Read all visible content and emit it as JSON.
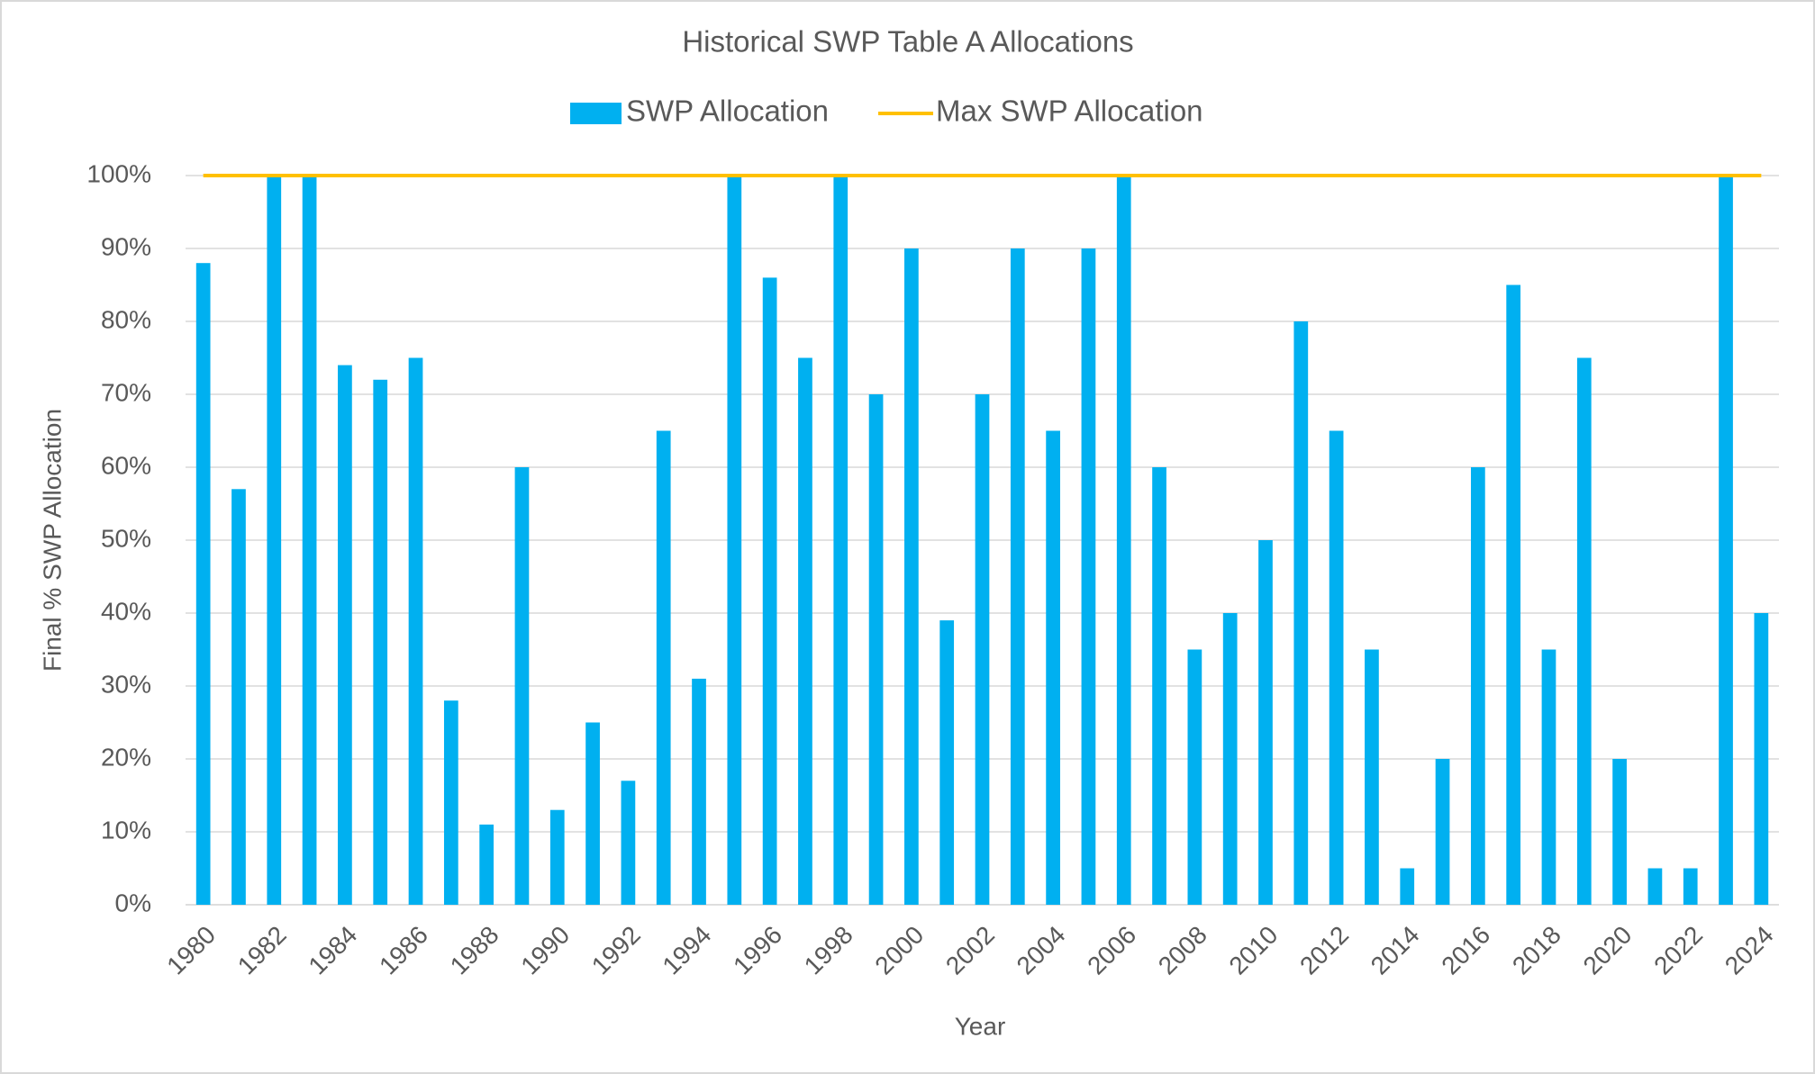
{
  "chart_data": {
    "type": "bar",
    "title": "Historical SWP Table A Allocations",
    "x_label": "Year",
    "y_label": "Final % SWP Allocation",
    "categories": [
      "1980",
      null,
      "1982",
      null,
      "1984",
      null,
      "1986",
      null,
      "1988",
      null,
      "1990",
      null,
      "1992",
      null,
      "1994",
      null,
      "1996",
      null,
      "1998",
      null,
      "2000",
      null,
      "2002",
      null,
      "2004",
      null,
      "2006",
      null,
      "2008",
      null,
      "2010",
      null,
      "2012",
      null,
      "2014",
      null,
      "2016",
      null,
      "2018",
      null,
      "2020",
      null,
      "2022",
      null,
      "2024"
    ],
    "series": [
      {
        "name": "SWP Allocation",
        "type": "bar",
        "color": "#00b0f0",
        "values": [
          88,
          57,
          100,
          100,
          74,
          72,
          75,
          28,
          11,
          60,
          13,
          25,
          17,
          65,
          31,
          100,
          86,
          75,
          100,
          70,
          90,
          39,
          70,
          90,
          65,
          90,
          100,
          60,
          35,
          40,
          50,
          80,
          65,
          35,
          5,
          20,
          60,
          85,
          35,
          75,
          20,
          5,
          5,
          100,
          40
        ]
      },
      {
        "name": "Max SWP Allocation",
        "type": "line",
        "color": "#ffc000",
        "values": [
          100,
          100,
          100,
          100,
          100,
          100,
          100,
          100,
          100,
          100,
          100,
          100,
          100,
          100,
          100,
          100,
          100,
          100,
          100,
          100,
          100,
          100,
          100,
          100,
          100,
          100,
          100,
          100,
          100,
          100,
          100,
          100,
          100,
          100,
          100,
          100,
          100,
          100,
          100,
          100,
          100,
          100,
          100,
          100,
          100
        ]
      }
    ],
    "ylim": [
      0,
      100
    ],
    "yticks": [
      {
        "value": 0,
        "label": "0%"
      },
      {
        "value": 10,
        "label": "10%"
      },
      {
        "value": 20,
        "label": "20%"
      },
      {
        "value": 30,
        "label": "30%"
      },
      {
        "value": 40,
        "label": "40%"
      },
      {
        "value": 50,
        "label": "50%"
      },
      {
        "value": 60,
        "label": "60%"
      },
      {
        "value": 70,
        "label": "70%"
      },
      {
        "value": 80,
        "label": "80%"
      },
      {
        "value": 90,
        "label": "90%"
      },
      {
        "value": 100,
        "label": "100%"
      }
    ],
    "grid": true,
    "legend": "top"
  }
}
